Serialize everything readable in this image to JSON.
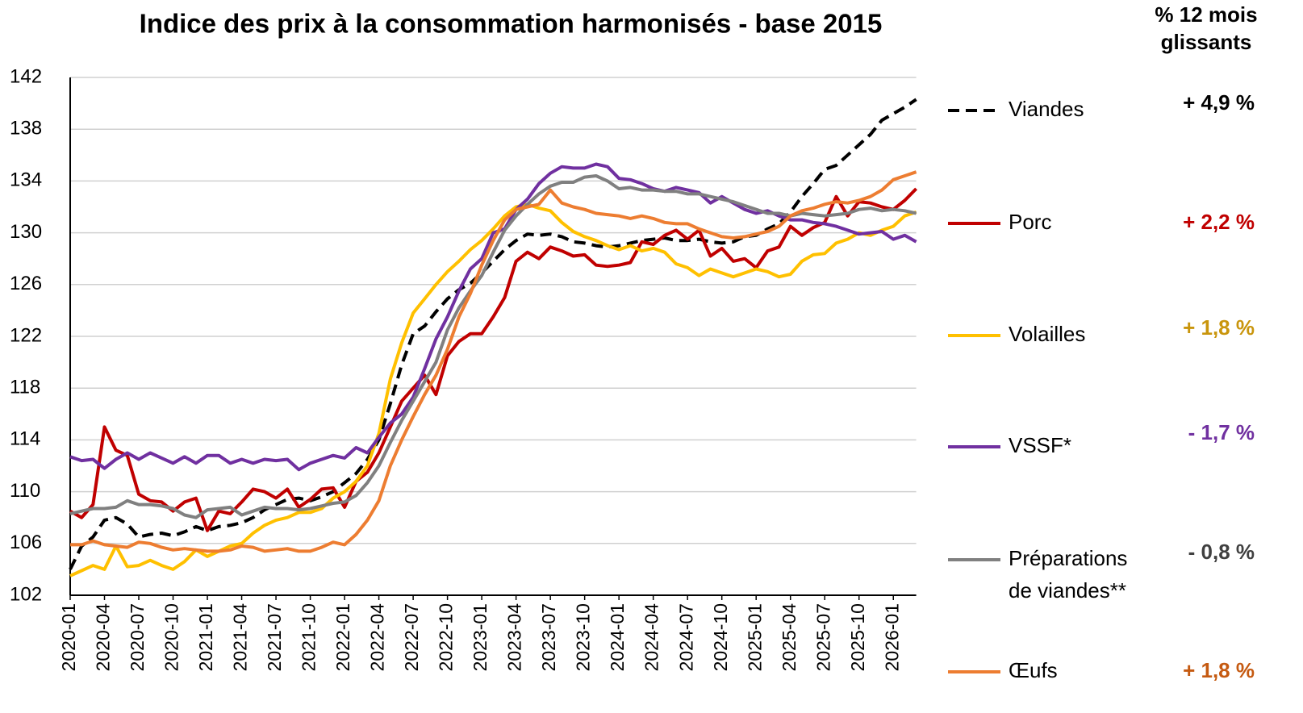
{
  "chart_data": {
    "type": "line",
    "title": "Indice des prix à la consommation harmonisés -  base 2015",
    "change_header": [
      "% 12 mois",
      "glissants"
    ],
    "categories": [
      "2020-01",
      null,
      null,
      "2020-04",
      null,
      null,
      "2020-07",
      null,
      null,
      "2020-10",
      null,
      null,
      "2021-01",
      null,
      null,
      "2021-04",
      null,
      null,
      "2021-07",
      null,
      null,
      "2021-10",
      null,
      null,
      "2022-01",
      null,
      null,
      "2022-04",
      null,
      null,
      "2022-07",
      null,
      null,
      "2022-10",
      null,
      null,
      "2023-01",
      null,
      null,
      "2023-04",
      null,
      null,
      "2023-07",
      null,
      null,
      "2023-10",
      null,
      null,
      "2024-01",
      null,
      null,
      "2024-04",
      null,
      null,
      "2024-07",
      null,
      null,
      "2024-10",
      null,
      null,
      "2025-01",
      null,
      null,
      "2025-04",
      null,
      null,
      "2025-07",
      null,
      null,
      "2025-10",
      null,
      null,
      "2026-01",
      null,
      null
    ],
    "ylim": [
      102,
      142
    ],
    "yticks": [
      102,
      106,
      110,
      114,
      118,
      122,
      126,
      130,
      134,
      138,
      142
    ],
    "grid": true,
    "series": [
      {
        "name": "Viandes",
        "color": "#000000",
        "dash": true,
        "change": "+ 4,9 %",
        "change_color": "#000000",
        "values": [
          104.0,
          105.8,
          106.5,
          107.8,
          108.0,
          107.5,
          106.5,
          106.7,
          106.8,
          106.6,
          106.9,
          107.3,
          107.0,
          107.3,
          107.4,
          107.6,
          108.0,
          108.6,
          109.0,
          109.4,
          109.5,
          109.3,
          109.6,
          110.0,
          110.7,
          111.4,
          112.5,
          114.0,
          116.8,
          119.8,
          122.2,
          122.8,
          123.9,
          124.9,
          125.6,
          126.1,
          126.9,
          127.8,
          128.7,
          129.4,
          129.9,
          129.8,
          129.9,
          129.7,
          129.3,
          129.2,
          129.0,
          128.9,
          129.0,
          129.2,
          129.4,
          129.5,
          129.6,
          129.4,
          129.4,
          129.5,
          129.3,
          129.2,
          129.3,
          129.7,
          129.8,
          130.3,
          130.7,
          131.6,
          132.8,
          133.8,
          134.9,
          135.2,
          136.0,
          136.8,
          137.6,
          138.7,
          139.2,
          139.7,
          140.3
        ]
      },
      {
        "name": "Porc",
        "color": "#c00000",
        "dash": false,
        "change": "+ 2,2 %",
        "change_color": "#c00000",
        "values": [
          108.5,
          108.0,
          109.0,
          115.0,
          113.2,
          112.8,
          109.8,
          109.3,
          109.2,
          108.5,
          109.2,
          109.5,
          107.0,
          108.5,
          108.3,
          109.2,
          110.2,
          110.0,
          109.5,
          110.2,
          108.8,
          109.4,
          110.2,
          110.3,
          108.8,
          110.8,
          111.5,
          113.0,
          115.0,
          117.0,
          118.0,
          119.0,
          117.5,
          120.5,
          121.6,
          122.2,
          122.2,
          123.5,
          125.0,
          127.8,
          128.5,
          128.0,
          128.9,
          128.6,
          128.2,
          128.3,
          127.5,
          127.4,
          127.5,
          127.7,
          129.3,
          129.1,
          129.8,
          130.2,
          129.5,
          130.2,
          128.2,
          128.8,
          127.8,
          128.0,
          127.3,
          128.6,
          128.9,
          130.5,
          129.8,
          130.4,
          130.8,
          132.8,
          131.3,
          132.4,
          132.3,
          132.0,
          131.8,
          132.5,
          133.4
        ]
      },
      {
        "name": "Volailles",
        "color": "#ffc000",
        "dash": false,
        "change": "+ 1,8 %",
        "change_color": "#c9950c",
        "values": [
          103.5,
          103.9,
          104.3,
          104.0,
          105.8,
          104.2,
          104.3,
          104.7,
          104.3,
          104.0,
          104.6,
          105.5,
          105.0,
          105.4,
          105.8,
          106.0,
          106.8,
          107.4,
          107.8,
          108.0,
          108.4,
          108.4,
          108.7,
          109.5,
          110.0,
          110.8,
          112.0,
          114.5,
          118.7,
          121.5,
          123.8,
          124.9,
          126.0,
          127.0,
          127.8,
          128.7,
          129.4,
          130.3,
          131.3,
          132.0,
          132.2,
          131.9,
          131.7,
          130.8,
          130.1,
          129.7,
          129.4,
          129.0,
          128.7,
          129.0,
          128.6,
          128.8,
          128.5,
          127.6,
          127.3,
          126.7,
          127.2,
          126.9,
          126.6,
          126.9,
          127.2,
          127.0,
          126.6,
          126.8,
          127.8,
          128.3,
          128.4,
          129.2,
          129.5,
          130.0,
          129.8,
          130.2,
          130.5,
          131.3,
          131.6
        ]
      },
      {
        "name": "VSSF*",
        "color": "#7030a0",
        "dash": false,
        "change": "- 1,7 %",
        "change_color": "#7030a0",
        "values": [
          112.7,
          112.4,
          112.5,
          111.8,
          112.5,
          113.0,
          112.5,
          113.0,
          112.6,
          112.2,
          112.7,
          112.2,
          112.8,
          112.8,
          112.2,
          112.5,
          112.2,
          112.5,
          112.4,
          112.5,
          111.7,
          112.2,
          112.5,
          112.8,
          112.6,
          113.4,
          113.0,
          114.2,
          115.3,
          116.0,
          117.3,
          119.5,
          121.8,
          123.5,
          125.5,
          127.2,
          128.0,
          130.0,
          130.3,
          131.8,
          132.6,
          133.8,
          134.6,
          135.1,
          135.0,
          135.0,
          135.3,
          135.1,
          134.2,
          134.1,
          133.8,
          133.4,
          133.2,
          133.5,
          133.3,
          133.1,
          132.3,
          132.8,
          132.3,
          131.8,
          131.5,
          131.7,
          131.3,
          131.0,
          131.0,
          130.8,
          130.7,
          130.5,
          130.2,
          129.9,
          130.0,
          130.1,
          129.5,
          129.8,
          129.3
        ]
      },
      {
        "name": "Préparations de viandes**",
        "color": "#808080",
        "dash": false,
        "change": "- 0,8 %",
        "change_color": "#404040",
        "values": [
          108.3,
          108.5,
          108.7,
          108.7,
          108.8,
          109.3,
          109.0,
          109.0,
          108.9,
          108.7,
          108.2,
          108.0,
          108.6,
          108.7,
          108.8,
          108.2,
          108.5,
          108.8,
          108.7,
          108.7,
          108.6,
          108.7,
          108.9,
          109.1,
          109.2,
          109.7,
          110.7,
          112.0,
          113.8,
          115.5,
          117.0,
          118.5,
          120.0,
          122.5,
          124.2,
          125.5,
          126.7,
          128.5,
          130.2,
          131.3,
          132.2,
          133.0,
          133.6,
          133.9,
          133.9,
          134.3,
          134.4,
          134.0,
          133.4,
          133.5,
          133.3,
          133.3,
          133.2,
          133.2,
          133.0,
          133.0,
          132.8,
          132.6,
          132.4,
          132.1,
          131.8,
          131.5,
          131.5,
          131.3,
          131.5,
          131.4,
          131.3,
          131.4,
          131.5,
          131.8,
          131.9,
          131.7,
          131.8,
          131.7,
          131.5
        ]
      },
      {
        "name": "Œufs",
        "color": "#ed7d31",
        "dash": false,
        "change": "+ 1,8 %",
        "change_color": "#c55a11",
        "values": [
          105.9,
          105.9,
          106.2,
          105.9,
          105.8,
          105.7,
          106.1,
          106.0,
          105.7,
          105.5,
          105.6,
          105.5,
          105.4,
          105.4,
          105.5,
          105.8,
          105.7,
          105.4,
          105.5,
          105.6,
          105.4,
          105.4,
          105.7,
          106.1,
          105.9,
          106.7,
          107.8,
          109.3,
          112.0,
          114.0,
          115.8,
          117.5,
          119.0,
          121.0,
          123.5,
          125.3,
          127.5,
          129.4,
          131.0,
          131.8,
          132.0,
          132.2,
          133.3,
          132.3,
          132.0,
          131.8,
          131.5,
          131.4,
          131.3,
          131.1,
          131.3,
          131.1,
          130.8,
          130.7,
          130.7,
          130.3,
          130.0,
          129.7,
          129.6,
          129.7,
          129.9,
          130.1,
          130.5,
          131.3,
          131.7,
          131.9,
          132.2,
          132.4,
          132.3,
          132.5,
          132.8,
          133.3,
          134.1,
          134.4,
          134.7
        ]
      }
    ]
  }
}
